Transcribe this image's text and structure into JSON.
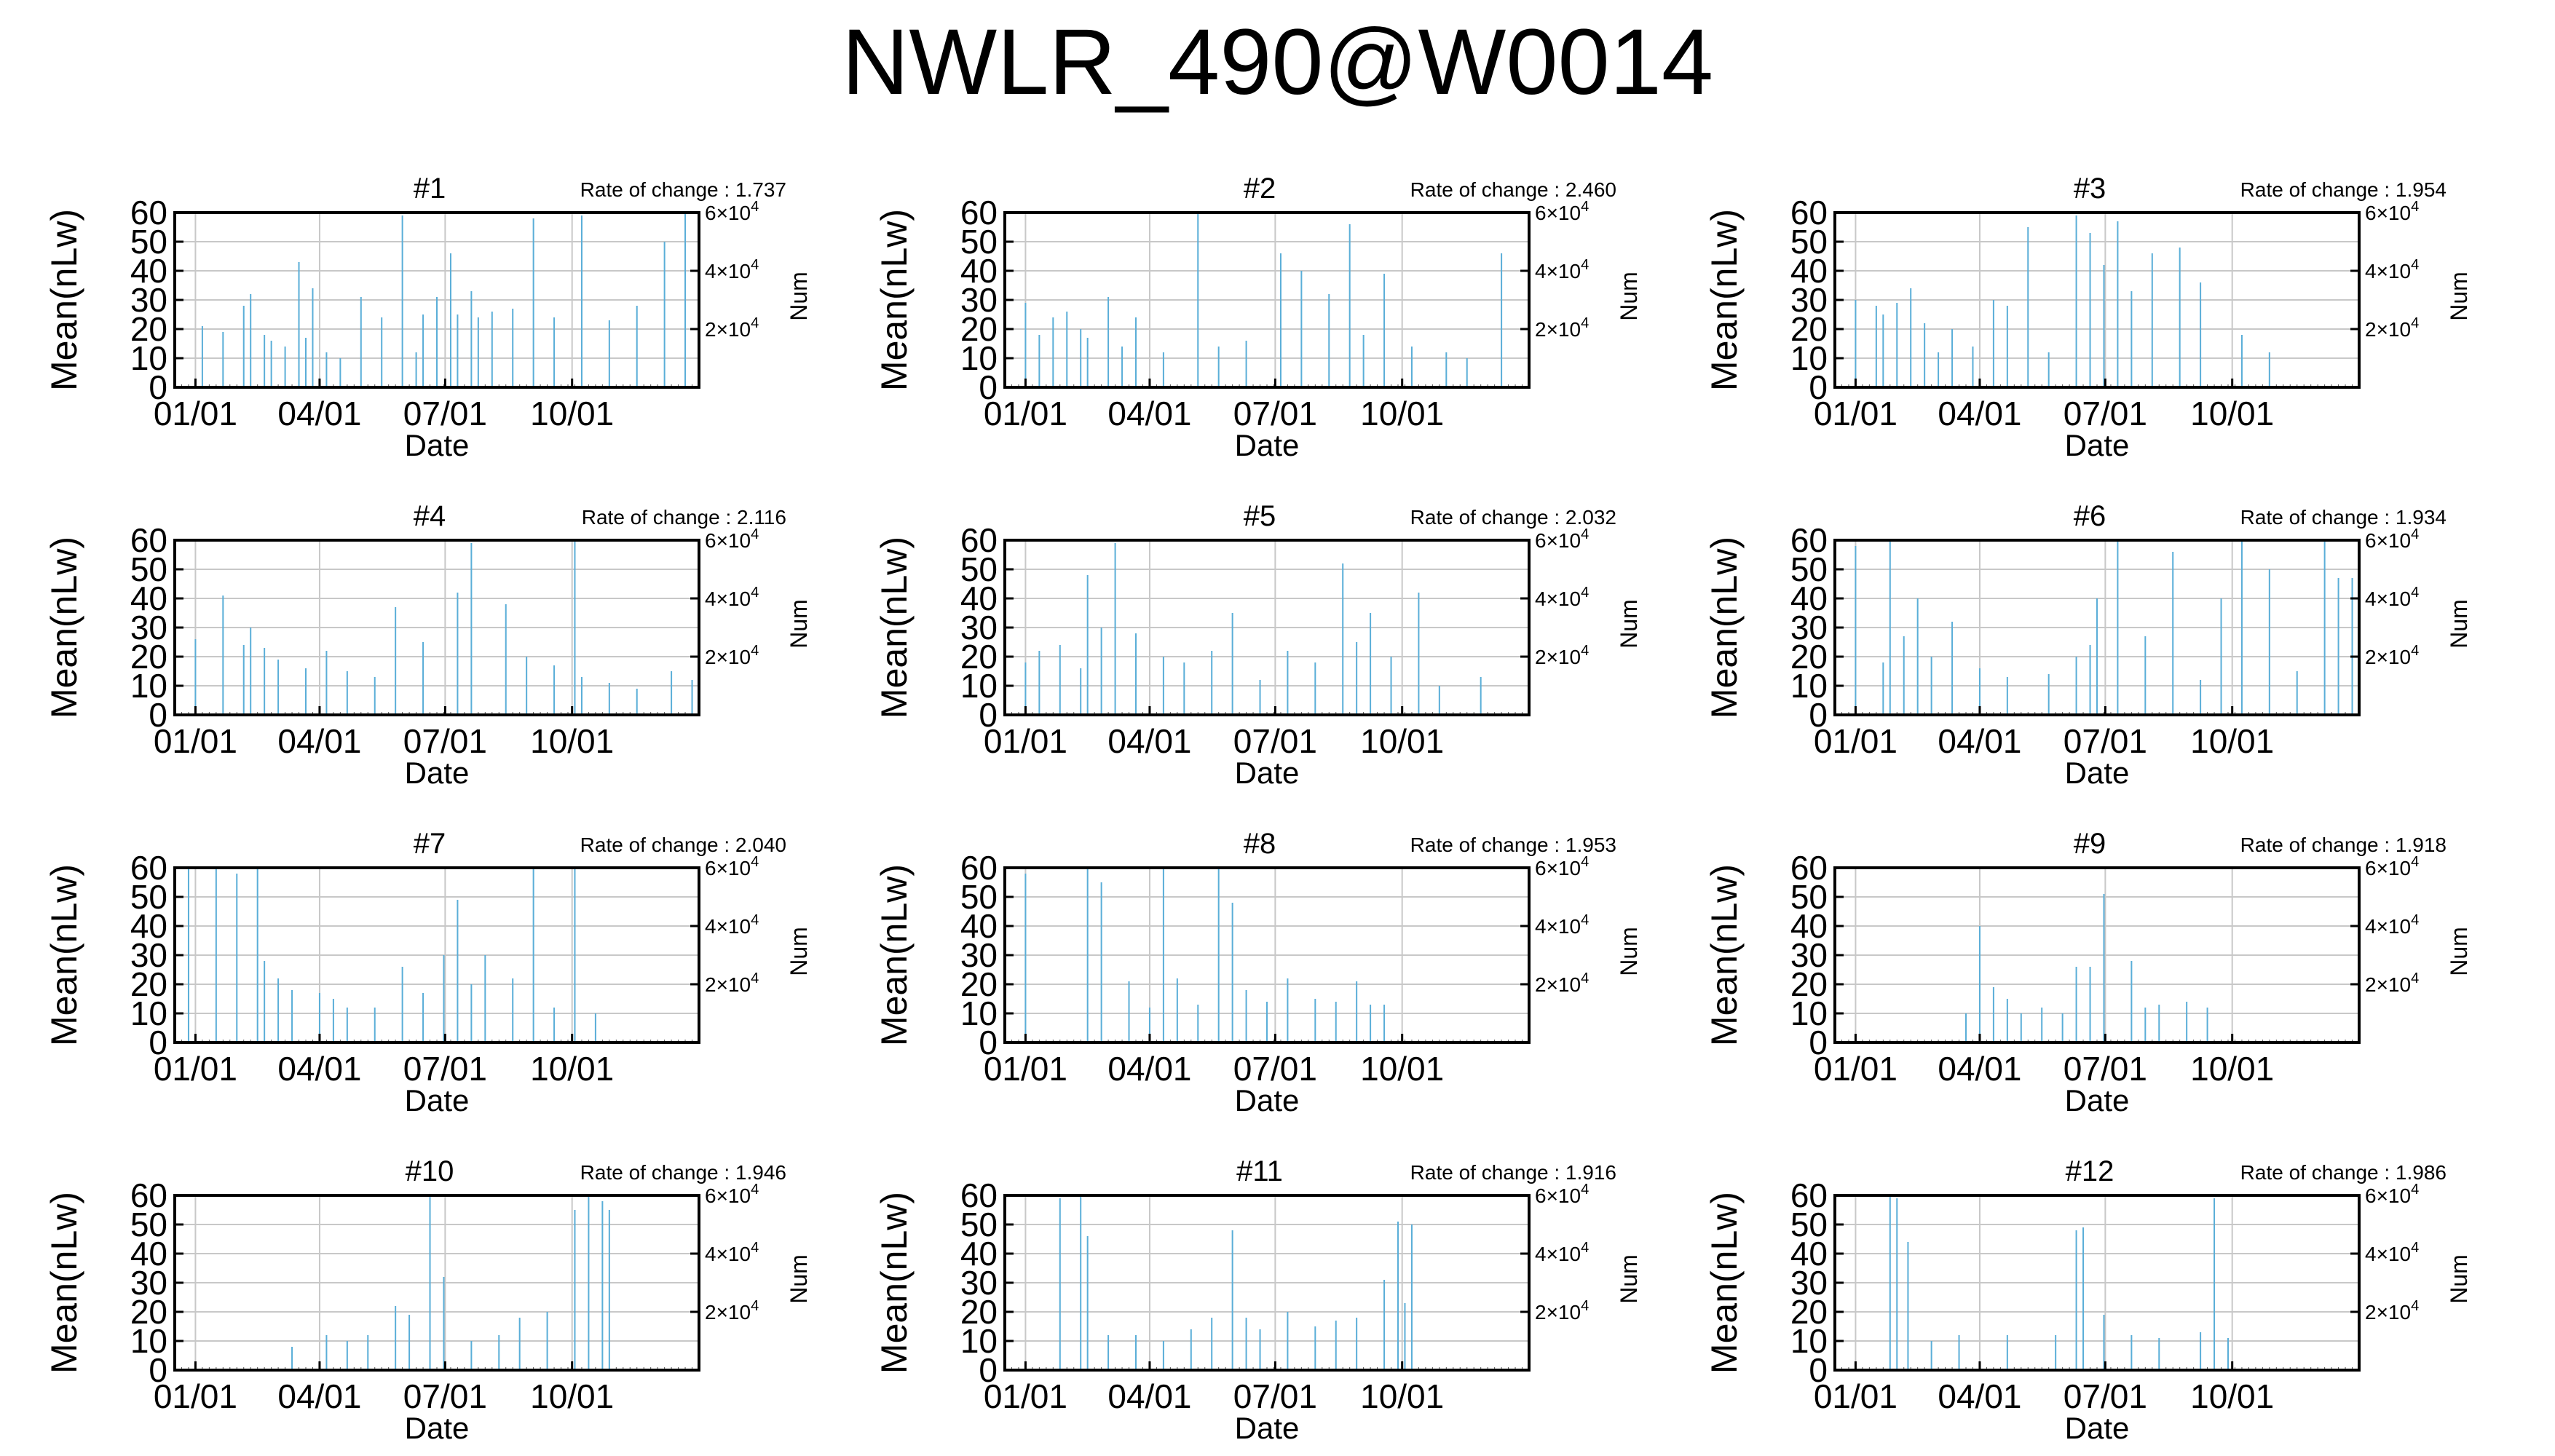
{
  "title": "NWLR_490@W0014",
  "chart_data": {
    "type": "bar",
    "description_axes": {
      "ylabel": "Mean(nLw)",
      "ylabel_right": "Num",
      "xlabel": "Date",
      "ylim": [
        0,
        60
      ],
      "yticks": [
        "0",
        "10",
        "20",
        "30",
        "40",
        "50",
        "60"
      ],
      "y2_ticks": [
        {
          "value": 20000,
          "mant": "2",
          "exp": "4"
        },
        {
          "value": 40000,
          "mant": "4",
          "exp": "4"
        },
        {
          "value": 60000,
          "mant": "6",
          "exp": "4"
        }
      ],
      "y2lim": [
        0,
        60000
      ],
      "xticks": [
        {
          "day": 0,
          "label": "01/01"
        },
        {
          "day": 90,
          "label": "04/01"
        },
        {
          "day": 181,
          "label": "07/01"
        },
        {
          "day": 273,
          "label": "10/01"
        }
      ],
      "xrange_days": [
        -15,
        365
      ],
      "grid": true
    },
    "series_color": "#5aaed8",
    "panels": [
      {
        "label": "#1",
        "rate_label": "Rate of change : 1.737",
        "days": [
          5,
          20,
          35,
          40,
          50,
          55,
          65,
          75,
          80,
          85,
          95,
          105,
          120,
          135,
          150,
          160,
          165,
          175,
          185,
          190,
          200,
          205,
          215,
          230,
          245,
          260,
          280,
          300,
          320,
          340,
          355
        ],
        "values": [
          21,
          19,
          28,
          32,
          18,
          16,
          14,
          43,
          17,
          34,
          12,
          10,
          31,
          24,
          59,
          12,
          25,
          31,
          46,
          25,
          33,
          24,
          26,
          27,
          58,
          24,
          59,
          23,
          28,
          50,
          60
        ]
      },
      {
        "label": "#2",
        "rate_label": "Rate of change : 2.460",
        "days": [
          0,
          10,
          20,
          30,
          40,
          45,
          60,
          70,
          80,
          100,
          125,
          140,
          160,
          185,
          200,
          220,
          235,
          245,
          260,
          280,
          305,
          320,
          345
        ],
        "values": [
          29,
          18,
          24,
          26,
          20,
          17,
          31,
          14,
          24,
          12,
          60,
          14,
          16,
          46,
          40,
          32,
          56,
          18,
          39,
          14,
          12,
          10,
          46
        ]
      },
      {
        "label": "#3",
        "rate_label": "Rate of change : 1.954",
        "days": [
          0,
          15,
          20,
          30,
          40,
          50,
          60,
          70,
          85,
          100,
          110,
          125,
          140,
          160,
          170,
          180,
          190,
          200,
          215,
          235,
          250,
          280,
          300
        ],
        "values": [
          30,
          28,
          25,
          29,
          34,
          22,
          12,
          20,
          14,
          30,
          28,
          55,
          12,
          59,
          53,
          42,
          57,
          33,
          46,
          48,
          36,
          18,
          12
        ]
      },
      {
        "label": "#4",
        "rate_label": "Rate of change : 2.116",
        "days": [
          0,
          20,
          35,
          40,
          50,
          60,
          80,
          95,
          110,
          130,
          145,
          165,
          190,
          200,
          225,
          240,
          260,
          275,
          280,
          300,
          320,
          345,
          360
        ],
        "values": [
          26,
          41,
          24,
          30,
          23,
          19,
          16,
          22,
          15,
          13,
          37,
          25,
          42,
          59,
          38,
          20,
          17,
          60,
          13,
          11,
          9,
          15,
          12
        ]
      },
      {
        "label": "#5",
        "rate_label": "Rate of change : 2.032",
        "days": [
          0,
          10,
          25,
          40,
          45,
          55,
          65,
          80,
          100,
          115,
          135,
          150,
          170,
          190,
          210,
          230,
          240,
          250,
          265,
          285,
          300,
          330
        ],
        "values": [
          18,
          22,
          24,
          16,
          48,
          30,
          59,
          28,
          20,
          18,
          22,
          35,
          12,
          22,
          18,
          52,
          25,
          35,
          20,
          42,
          10,
          13
        ]
      },
      {
        "label": "#6",
        "rate_label": "Rate of change : 1.934",
        "days": [
          0,
          20,
          25,
          35,
          45,
          55,
          70,
          90,
          110,
          140,
          160,
          170,
          175,
          190,
          210,
          230,
          250,
          265,
          280,
          300,
          320,
          340,
          350,
          360
        ],
        "values": [
          58,
          18,
          60,
          27,
          40,
          20,
          32,
          16,
          13,
          14,
          20,
          24,
          40,
          60,
          27,
          56,
          12,
          40,
          60,
          50,
          15,
          60,
          47,
          47
        ]
      },
      {
        "label": "#7",
        "rate_label": "Rate of change : 2.040",
        "days": [
          -5,
          15,
          30,
          45,
          50,
          60,
          70,
          90,
          100,
          110,
          130,
          150,
          165,
          180,
          190,
          200,
          210,
          230,
          245,
          260,
          275,
          290
        ],
        "values": [
          60,
          60,
          58,
          60,
          28,
          22,
          18,
          17,
          15,
          12,
          12,
          26,
          17,
          30,
          49,
          20,
          30,
          22,
          60,
          12,
          60,
          10
        ]
      },
      {
        "label": "#8",
        "rate_label": "Rate of change : 1.953",
        "days": [
          0,
          45,
          55,
          75,
          90,
          100,
          110,
          125,
          140,
          150,
          160,
          175,
          190,
          210,
          225,
          240,
          250,
          260
        ],
        "values": [
          58,
          60,
          55,
          21,
          12,
          60,
          22,
          13,
          60,
          48,
          18,
          14,
          22,
          15,
          14,
          21,
          13,
          13
        ]
      },
      {
        "label": "#9",
        "rate_label": "Rate of change : 1.918",
        "days": [
          80,
          90,
          100,
          110,
          120,
          135,
          150,
          160,
          170,
          180,
          200,
          210,
          220,
          240,
          255
        ],
        "values": [
          10,
          40,
          19,
          15,
          10,
          12,
          10,
          26,
          26,
          51,
          28,
          12,
          13,
          14,
          12
        ]
      },
      {
        "label": "#10",
        "rate_label": "Rate of change : 1.946",
        "days": [
          70,
          95,
          110,
          125,
          145,
          155,
          170,
          180,
          200,
          220,
          235,
          255,
          275,
          285,
          295,
          300
        ],
        "values": [
          8,
          12,
          10,
          12,
          22,
          19,
          60,
          32,
          10,
          12,
          18,
          20,
          55,
          60,
          58,
          55
        ]
      },
      {
        "label": "#11",
        "rate_label": "Rate of change : 1.916",
        "days": [
          25,
          40,
          45,
          60,
          80,
          100,
          120,
          135,
          150,
          160,
          170,
          190,
          210,
          225,
          240,
          260,
          270,
          275,
          280
        ],
        "values": [
          59,
          60,
          46,
          12,
          12,
          10,
          14,
          18,
          48,
          18,
          14,
          20,
          15,
          17,
          18,
          31,
          51,
          23,
          50
        ]
      },
      {
        "label": "#12",
        "rate_label": "Rate of change : 1.986",
        "days": [
          25,
          30,
          38,
          55,
          75,
          110,
          145,
          160,
          165,
          180,
          200,
          220,
          250,
          260,
          270
        ],
        "values": [
          60,
          59,
          44,
          10,
          12,
          12,
          12,
          48,
          49,
          19,
          12,
          11,
          13,
          59,
          11
        ]
      }
    ]
  }
}
